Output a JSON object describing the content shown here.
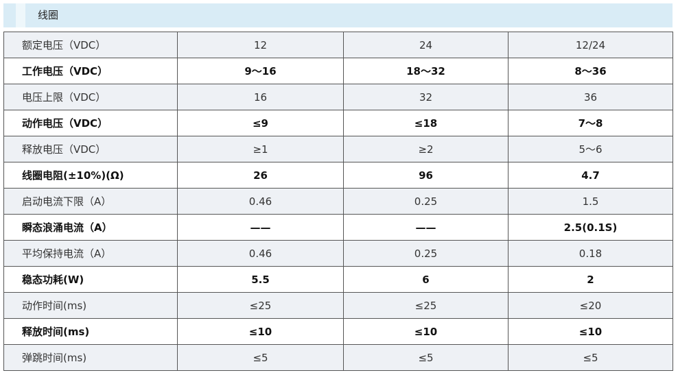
{
  "header": {
    "title": "线圈"
  },
  "table": {
    "rows": [
      [
        "额定电压（VDC）",
        "12",
        "24",
        "12/24"
      ],
      [
        "工作电压（VDC）",
        "9～16",
        "18～32",
        "8～36"
      ],
      [
        "电压上限（VDC）",
        "16",
        "32",
        "36"
      ],
      [
        "动作电压（VDC）",
        "≤9",
        "≤18",
        "7～8"
      ],
      [
        "释放电压（VDC）",
        "≥1",
        "≥2",
        "5～6"
      ],
      [
        "线圈电阻(±10%)(Ω)",
        "26",
        "96",
        "4.7"
      ],
      [
        "启动电流下限（A）",
        "0.46",
        "0.25",
        "1.5"
      ],
      [
        "瞬态浪涌电流（A）",
        "——",
        "——",
        "2.5(0.1S)"
      ],
      [
        "平均保持电流（A）",
        "0.46",
        "0.25",
        "0.18"
      ],
      [
        "稳态功耗(W)",
        "5.5",
        "6",
        "2"
      ],
      [
        "动作时间(ms)",
        "≤25",
        "≤25",
        "≤20"
      ],
      [
        "释放时间(ms)",
        "≤10",
        "≤10",
        "≤10"
      ],
      [
        "弹跳时间(ms)",
        "≤5",
        "≤5",
        "≤5"
      ]
    ]
  }
}
